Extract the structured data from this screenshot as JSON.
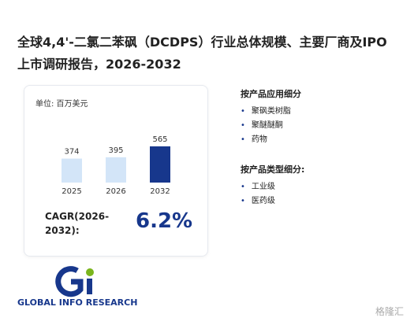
{
  "title": "全球4,4'-二氯二苯砜（DCDPS）行业总体规模、主要厂商及IPO上市调研报告，2026-2032",
  "chart_data": {
    "type": "bar",
    "unit": "单位: 百万美元",
    "categories": [
      "2025",
      "2026",
      "2032"
    ],
    "values": [
      374,
      395,
      565
    ],
    "colors": [
      "#d3e5f8",
      "#d3e5f8",
      "#17378c"
    ]
  },
  "cagr": {
    "label": "CAGR(2026-2032):",
    "value": "6.2%"
  },
  "segments": [
    {
      "heading": "按产品应用细分",
      "items": [
        "聚砜类树脂",
        "聚醚醚酮",
        "药物"
      ]
    },
    {
      "heading": "按产品类型细分:",
      "items": [
        "工业级",
        "医药级"
      ]
    }
  ],
  "logo": {
    "text": "GLOBAL INFO RESEARCH"
  },
  "watermark": "格隆汇"
}
